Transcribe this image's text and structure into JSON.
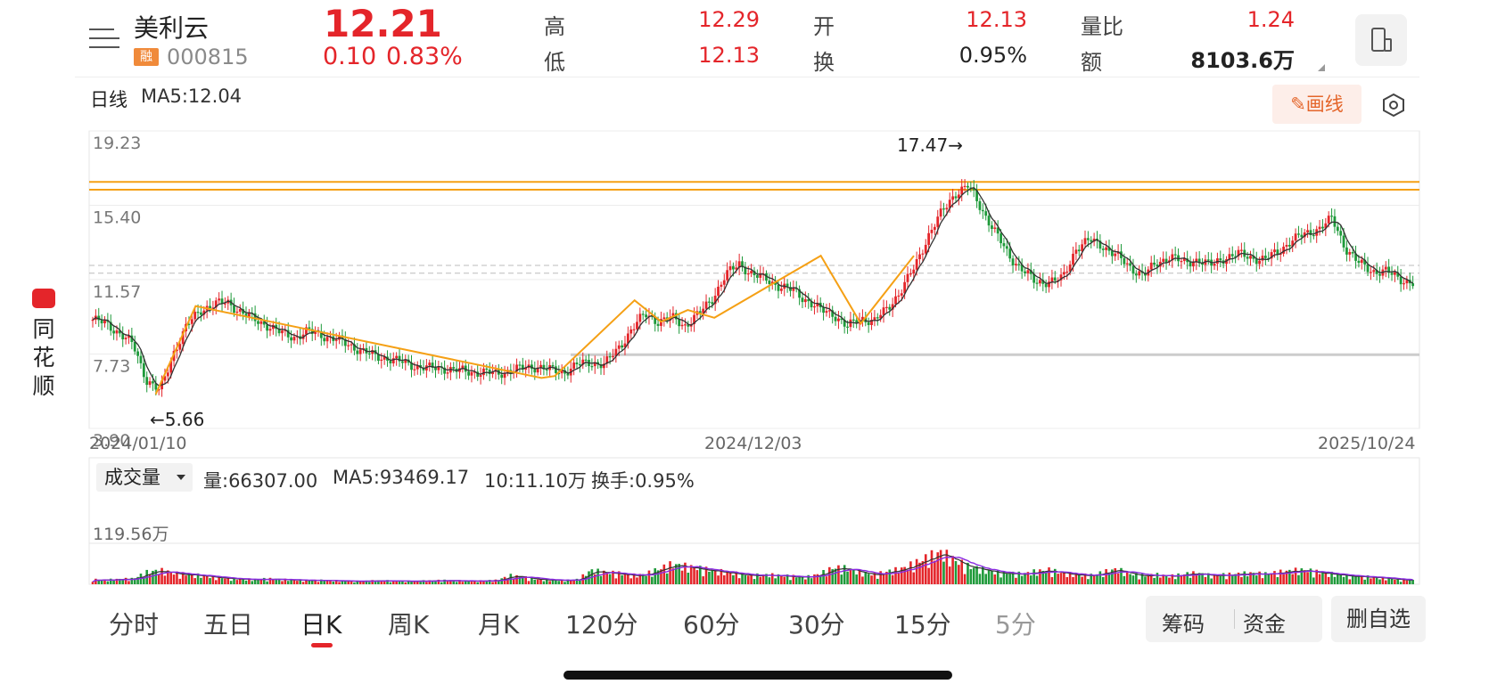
{
  "stock": {
    "name": "美利云",
    "badge": "融",
    "code": "000815",
    "price": "12.21",
    "change": "0.10",
    "change_pct": "0.83%"
  },
  "quote": {
    "high_label": "高",
    "high": "12.29",
    "low_label": "低",
    "low": "12.13",
    "open_label": "开",
    "open": "12.13",
    "turnover_label": "换",
    "turnover": "0.95%",
    "vol_ratio_label": "量比",
    "vol_ratio": "1.24",
    "amount_label": "额",
    "amount": "8103.6万"
  },
  "chart_header": {
    "period": "日线",
    "ma5": "MA5:12.04",
    "draw_button": "画线"
  },
  "side_app": {
    "name": "同花顺"
  },
  "chart_data": {
    "type": "candlestick",
    "y_labels": [
      "19.23",
      "15.40",
      "11.57",
      "7.73",
      "3.90"
    ],
    "ylim": [
      3.9,
      19.23
    ],
    "x_labels": [
      "2024/01/10",
      "2024/12/03",
      "2025/10/24"
    ],
    "max_annotation": "17.47→",
    "min_annotation": "←5.66",
    "max_value": 17.47,
    "min_value": 5.66,
    "horizontal_lines": [
      16.6,
      16.2
    ],
    "close_profile": [
      9.5,
      9.3,
      8.8,
      8.2,
      6.4,
      5.8,
      7.8,
      9.2,
      10.0,
      10.3,
      10.4,
      9.9,
      9.5,
      9.2,
      8.8,
      8.6,
      8.9,
      8.7,
      8.5,
      8.2,
      7.9,
      7.6,
      7.5,
      7.3,
      7.1,
      7.0,
      7.0,
      6.9,
      6.8,
      6.8,
      6.7,
      6.9,
      7.0,
      7.1,
      6.9,
      6.8,
      7.2,
      7.3,
      7.2,
      8.0,
      9.0,
      9.8,
      9.4,
      9.6,
      9.2,
      9.8,
      10.6,
      11.8,
      12.4,
      11.8,
      11.6,
      11.2,
      11.0,
      10.5,
      10.0,
      9.8,
      9.1,
      9.6,
      9.4,
      10.1,
      11.0,
      12.2,
      13.8,
      15.0,
      16.0,
      16.4,
      15.2,
      14.0,
      12.8,
      12.1,
      11.4,
      11.5,
      11.6,
      13.2,
      13.6,
      13.3,
      12.8,
      12.2,
      11.8,
      12.4,
      12.8,
      12.4,
      12.6,
      12.3,
      12.7,
      12.9,
      12.7,
      12.6,
      13.0,
      13.6,
      13.9,
      14.2,
      14.7,
      13.2,
      12.4,
      12.0,
      12.0,
      11.6,
      11.4
    ],
    "volume_header": {
      "selector": "成交量",
      "volume": "量:66307.00",
      "ma5": "MA5:93469.17",
      "ma10": "10:11.10万",
      "turnover": "换手:0.95%"
    },
    "volume_max_label": "119.56万",
    "volume_max": 119.56,
    "volume_profile": [
      12,
      11,
      13,
      14,
      30,
      35,
      28,
      25,
      22,
      18,
      15,
      13,
      12,
      14,
      12,
      11,
      10,
      10,
      9,
      8,
      8,
      9,
      9,
      8,
      8,
      9,
      10,
      9,
      8,
      9,
      10,
      22,
      18,
      12,
      11,
      10,
      12,
      35,
      30,
      28,
      22,
      25,
      38,
      50,
      45,
      40,
      35,
      30,
      26,
      22,
      24,
      22,
      20,
      18,
      26,
      42,
      40,
      30,
      24,
      32,
      38,
      52,
      68,
      80,
      60,
      45,
      38,
      30,
      28,
      26,
      32,
      36,
      28,
      24,
      22,
      30,
      38,
      26,
      22,
      24,
      20,
      26,
      28,
      22,
      24,
      26,
      28,
      26,
      30,
      34,
      36,
      30,
      26,
      22,
      20,
      18,
      15,
      12,
      10
    ]
  },
  "tabs": [
    "分时",
    "五日",
    "日K",
    "周K",
    "月K",
    "120分",
    "60分",
    "30分",
    "15分",
    "5分"
  ],
  "active_tab": "日K",
  "actions": {
    "chips": "筹码",
    "funds": "资金",
    "remove": "删自选"
  },
  "colors": {
    "up": "#e4252a",
    "down": "#1e9a3a",
    "ma5": "#333333",
    "ma10": "#8a2be2",
    "trendline": "#f5a015",
    "level": "#f5a015"
  }
}
